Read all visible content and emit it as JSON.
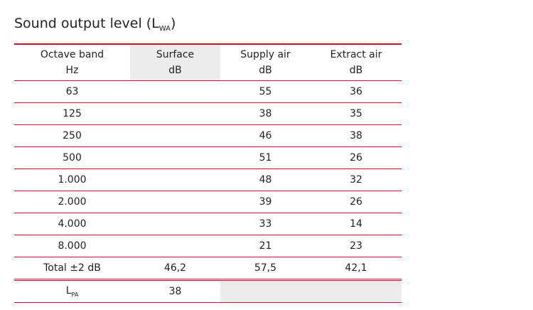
{
  "title": {
    "text": "Sound output level (L",
    "sub": "WA",
    "end": ")"
  },
  "table": {
    "header": [
      [
        "Octave band",
        "Hz"
      ],
      [
        "Surface",
        "dB"
      ],
      [
        "Supply air",
        "dB"
      ],
      [
        "Extract air",
        "dB"
      ]
    ],
    "rows": [
      [
        "63",
        null,
        "55",
        "36"
      ],
      [
        "125",
        null,
        "38",
        "35"
      ],
      [
        "250",
        null,
        "46",
        "38"
      ],
      [
        "500",
        null,
        "51",
        "26"
      ],
      [
        "1.000",
        null,
        "48",
        "32"
      ],
      [
        "2.000",
        null,
        "39",
        "26"
      ],
      [
        "4.000",
        null,
        "33",
        "14"
      ],
      [
        "8.000",
        null,
        "21",
        "23"
      ],
      [
        "Total ±2 dB",
        "46,2",
        "57,5",
        "42,1"
      ]
    ],
    "footer": {
      "label": {
        "text": "L",
        "sub": "PA"
      },
      "value": "38"
    }
  }
}
